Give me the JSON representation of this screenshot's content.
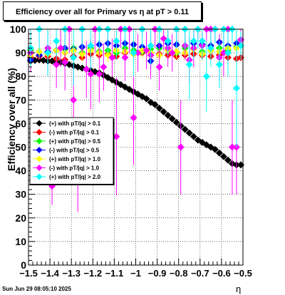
{
  "title": "Efficiency over all for Primary vs    η at pT > 0.11",
  "footer_date": "Sun Jun 29 08:05:10 2025",
  "chart_data": {
    "type": "scatter",
    "xlabel": "η",
    "ylabel": "Efficiency over all (%)",
    "xlim": [
      -1.5,
      -0.5
    ],
    "ylim": [
      0,
      100
    ],
    "x_ticks": [
      "−1.5",
      "−1.4",
      "−1.3",
      "−1.2",
      "−1.1",
      "−1",
      "−0.9",
      "−0.8",
      "−0.7",
      "−0.6",
      "−0.5"
    ],
    "y_ticks": [
      "0",
      "10",
      "20",
      "30",
      "40",
      "50",
      "60",
      "70",
      "80",
      "90",
      "100"
    ],
    "grid": true,
    "legend_position": "center-left",
    "series": [
      {
        "name": "(+) with pT/|q| > 0.1",
        "color": "#000000",
        "points": [
          [
            -1.49,
            86.5,
            0.8
          ],
          [
            -1.47,
            86.8,
            0.8
          ],
          [
            -1.45,
            87.0,
            0.8
          ],
          [
            -1.43,
            86.8,
            0.8
          ],
          [
            -1.41,
            86.5,
            0.8
          ],
          [
            -1.39,
            86.5,
            0.8
          ],
          [
            -1.37,
            86.0,
            0.8
          ],
          [
            -1.35,
            86.0,
            0.8
          ],
          [
            -1.33,
            85.5,
            0.8
          ],
          [
            -1.31,
            85.0,
            0.8
          ],
          [
            -1.29,
            84.5,
            0.8
          ],
          [
            -1.27,
            84.0,
            0.8
          ],
          [
            -1.25,
            83.5,
            0.8
          ],
          [
            -1.23,
            83.0,
            0.8
          ],
          [
            -1.21,
            82.5,
            0.8
          ],
          [
            -1.19,
            82.0,
            0.8
          ],
          [
            -1.17,
            81.5,
            0.8
          ],
          [
            -1.15,
            80.5,
            0.8
          ],
          [
            -1.13,
            79.5,
            0.8
          ],
          [
            -1.11,
            78.5,
            0.8
          ],
          [
            -1.09,
            77.5,
            0.8
          ],
          [
            -1.07,
            76.5,
            0.8
          ],
          [
            -1.05,
            75.5,
            0.8
          ],
          [
            -1.03,
            74.5,
            0.8
          ],
          [
            -1.01,
            73.5,
            0.8
          ],
          [
            -0.99,
            72.5,
            0.8
          ],
          [
            -0.97,
            71.5,
            0.8
          ],
          [
            -0.95,
            70.5,
            0.8
          ],
          [
            -0.93,
            69.0,
            0.8
          ],
          [
            -0.91,
            68.0,
            0.8
          ],
          [
            -0.89,
            66.5,
            0.8
          ],
          [
            -0.87,
            65.0,
            0.8
          ],
          [
            -0.85,
            63.5,
            0.8
          ],
          [
            -0.83,
            62.0,
            0.8
          ],
          [
            -0.81,
            60.5,
            0.8
          ],
          [
            -0.79,
            59.0,
            0.8
          ],
          [
            -0.77,
            57.5,
            0.8
          ],
          [
            -0.75,
            56.0,
            0.8
          ],
          [
            -0.73,
            54.5,
            0.8
          ],
          [
            -0.71,
            53.0,
            0.8
          ],
          [
            -0.69,
            52.0,
            0.8
          ],
          [
            -0.67,
            51.0,
            0.8
          ],
          [
            -0.65,
            50.0,
            0.8
          ],
          [
            -0.63,
            49.0,
            0.8
          ],
          [
            -0.61,
            47.5,
            0.8
          ],
          [
            -0.59,
            46.0,
            0.8
          ],
          [
            -0.57,
            44.5,
            0.8
          ],
          [
            -0.55,
            43.0,
            0.8
          ],
          [
            -0.53,
            42.5,
            0.8
          ],
          [
            -0.51,
            42.5,
            0.8
          ]
        ]
      },
      {
        "name": "(-) with pT/|q| > 0.1",
        "color": "#ff0000",
        "points": [
          [
            -1.49,
            88.0,
            1.5
          ],
          [
            -1.45,
            88.5,
            1.5
          ],
          [
            -1.41,
            88.5,
            1.5
          ],
          [
            -1.37,
            87.5,
            1.5
          ],
          [
            -1.33,
            87.0,
            1.5
          ],
          [
            -1.29,
            88.5,
            1.5
          ],
          [
            -1.25,
            88.0,
            1.5
          ],
          [
            -1.21,
            89.5,
            1.5
          ],
          [
            -1.17,
            89.0,
            1.5
          ],
          [
            -1.13,
            89.5,
            1.5
          ],
          [
            -1.09,
            88.5,
            1.5
          ],
          [
            -1.05,
            90.0,
            1.5
          ],
          [
            -1.01,
            89.5,
            1.5
          ],
          [
            -0.97,
            90.0,
            1.5
          ],
          [
            -0.93,
            89.0,
            1.5
          ],
          [
            -0.89,
            89.5,
            1.5
          ],
          [
            -0.85,
            89.0,
            1.5
          ],
          [
            -0.81,
            88.5,
            1.5
          ],
          [
            -0.77,
            89.0,
            1.5
          ],
          [
            -0.73,
            89.5,
            1.5
          ],
          [
            -0.69,
            89.0,
            1.5
          ],
          [
            -0.65,
            88.5,
            1.5
          ],
          [
            -0.61,
            89.0,
            1.5
          ],
          [
            -0.57,
            88.0,
            1.5
          ],
          [
            -0.53,
            87.5,
            1.5
          ],
          [
            -0.51,
            88.0,
            1.5
          ]
        ]
      },
      {
        "name": "(+) with pT/|q| > 0.5",
        "color": "#00ff00",
        "points": [
          [
            -1.49,
            91.0,
            1.5
          ],
          [
            -1.45,
            90.5,
            2.0
          ],
          [
            -1.41,
            90.0,
            2.0
          ],
          [
            -1.37,
            91.0,
            2.0
          ],
          [
            -1.33,
            91.5,
            2.0
          ],
          [
            -1.29,
            92.0,
            2.0
          ],
          [
            -1.25,
            90.0,
            2.0
          ],
          [
            -1.21,
            92.0,
            2.0
          ],
          [
            -1.17,
            90.5,
            2.0
          ],
          [
            -1.13,
            91.0,
            2.0
          ],
          [
            -1.09,
            90.0,
            2.0
          ],
          [
            -1.05,
            92.0,
            2.0
          ],
          [
            -1.01,
            91.0,
            2.0
          ],
          [
            -0.97,
            90.5,
            2.0
          ],
          [
            -0.93,
            91.5,
            2.0
          ],
          [
            -0.89,
            92.0,
            2.0
          ],
          [
            -0.85,
            91.0,
            2.0
          ],
          [
            -0.81,
            90.0,
            2.0
          ],
          [
            -0.77,
            92.0,
            2.0
          ],
          [
            -0.73,
            91.5,
            2.0
          ],
          [
            -0.69,
            90.5,
            2.0
          ],
          [
            -0.65,
            91.0,
            2.0
          ],
          [
            -0.61,
            92.0,
            2.0
          ],
          [
            -0.57,
            91.0,
            2.0
          ],
          [
            -0.53,
            92.5,
            2.0
          ]
        ]
      },
      {
        "name": "(-) with pT/|q| > 0.5",
        "color": "#0000ff",
        "points": [
          [
            -1.49,
            87.0,
            2.0
          ],
          [
            -1.45,
            89.0,
            2.0
          ],
          [
            -1.41,
            90.5,
            2.0
          ],
          [
            -1.37,
            91.0,
            2.0
          ],
          [
            -1.33,
            92.0,
            2.0
          ],
          [
            -1.29,
            91.5,
            2.0
          ],
          [
            -1.25,
            92.5,
            2.0
          ],
          [
            -1.21,
            93.0,
            2.0
          ],
          [
            -1.17,
            93.5,
            2.0
          ],
          [
            -1.13,
            94.0,
            2.0
          ],
          [
            -1.09,
            93.0,
            2.0
          ],
          [
            -1.05,
            94.0,
            2.0
          ],
          [
            -1.01,
            93.5,
            2.0
          ],
          [
            -0.97,
            92.5,
            2.0
          ],
          [
            -0.93,
            86.5,
            3.0
          ],
          [
            -0.89,
            93.0,
            2.0
          ],
          [
            -0.85,
            94.0,
            2.0
          ],
          [
            -0.81,
            93.5,
            2.0
          ],
          [
            -0.77,
            93.0,
            2.0
          ],
          [
            -0.73,
            94.0,
            2.0
          ],
          [
            -0.69,
            93.5,
            2.0
          ],
          [
            -0.65,
            93.0,
            2.0
          ],
          [
            -0.61,
            94.5,
            2.0
          ],
          [
            -0.57,
            93.0,
            2.0
          ],
          [
            -0.53,
            94.0,
            2.0
          ],
          [
            -0.51,
            95.5,
            2.0
          ]
        ]
      },
      {
        "name": "(+) with pT/|q| > 1.0",
        "color": "#ffff00",
        "points": [
          [
            -1.49,
            89.0,
            3.0
          ],
          [
            -1.45,
            90.5,
            3.0
          ],
          [
            -1.41,
            89.5,
            3.0
          ],
          [
            -1.37,
            91.0,
            3.0
          ],
          [
            -1.33,
            90.0,
            3.0
          ],
          [
            -1.29,
            91.0,
            3.0
          ],
          [
            -1.25,
            89.5,
            3.0
          ],
          [
            -1.21,
            91.0,
            3.0
          ],
          [
            -1.17,
            90.0,
            3.0
          ],
          [
            -1.13,
            89.0,
            3.0
          ],
          [
            -1.09,
            91.0,
            3.0
          ],
          [
            -1.05,
            90.5,
            3.0
          ],
          [
            -1.01,
            89.5,
            3.0
          ],
          [
            -0.97,
            91.0,
            3.0
          ],
          [
            -0.93,
            90.0,
            3.0
          ],
          [
            -0.89,
            89.0,
            3.0
          ],
          [
            -0.85,
            91.0,
            3.0
          ],
          [
            -0.81,
            90.5,
            3.0
          ],
          [
            -0.77,
            90.0,
            3.0
          ],
          [
            -0.73,
            91.5,
            3.0
          ],
          [
            -0.69,
            89.5,
            3.0
          ],
          [
            -0.65,
            91.0,
            3.0
          ],
          [
            -0.61,
            90.5,
            3.0
          ],
          [
            -0.57,
            92.0,
            3.0
          ],
          [
            -0.53,
            92.0,
            3.0
          ]
        ]
      },
      {
        "name": "(-) with pT/|q| > 1.0",
        "color": "#ff00ff",
        "points": [
          [
            -1.49,
            90.0,
            8.0
          ],
          [
            -1.45,
            100.0,
            10.0
          ],
          [
            -1.41,
            92.0,
            12.0
          ],
          [
            -1.39,
            33.5,
            8.0
          ],
          [
            -1.37,
            85.0,
            10.0
          ],
          [
            -1.35,
            92.0,
            8.0
          ],
          [
            -1.33,
            86.0,
            12.0
          ],
          [
            -1.31,
            100.0,
            10.0
          ],
          [
            -1.29,
            70.0,
            15.0
          ],
          [
            -1.27,
            42.5,
            20.0
          ],
          [
            -1.25,
            100.0,
            10.0
          ],
          [
            -1.23,
            83.0,
            12.0
          ],
          [
            -1.21,
            81.0,
            15.0
          ],
          [
            -1.19,
            100.0,
            10.0
          ],
          [
            -1.17,
            81.0,
            12.0
          ],
          [
            -1.15,
            84.0,
            10.0
          ],
          [
            -1.13,
            100.0,
            10.0
          ],
          [
            -1.11,
            88.0,
            8.0
          ],
          [
            -1.09,
            54.5,
            25.0
          ],
          [
            -1.07,
            100.0,
            8.0
          ],
          [
            -1.05,
            88.0,
            10.0
          ],
          [
            -1.03,
            100.0,
            10.0
          ],
          [
            -1.01,
            62.5,
            20.0
          ],
          [
            -0.99,
            90.0,
            8.0
          ],
          [
            -0.97,
            100.0,
            8.0
          ],
          [
            -0.95,
            91.0,
            8.0
          ],
          [
            -0.93,
            89.0,
            10.0
          ],
          [
            -0.91,
            100.0,
            8.0
          ],
          [
            -0.89,
            84.0,
            10.0
          ],
          [
            -0.87,
            96.0,
            5.0
          ],
          [
            -0.85,
            92.0,
            8.0
          ],
          [
            -0.83,
            90.0,
            8.0
          ],
          [
            -0.81,
            100.0,
            5.0
          ],
          [
            -0.79,
            50.0,
            20.0
          ],
          [
            -0.77,
            93.0,
            6.0
          ],
          [
            -0.75,
            87.0,
            10.0
          ],
          [
            -0.73,
            92.0,
            8.0
          ],
          [
            -0.71,
            100.0,
            5.0
          ],
          [
            -0.69,
            93.0,
            6.0
          ],
          [
            -0.67,
            100.0,
            5.0
          ],
          [
            -0.65,
            100.0,
            5.0
          ],
          [
            -0.63,
            100.0,
            5.0
          ],
          [
            -0.61,
            88.0,
            10.0
          ],
          [
            -0.59,
            90.0,
            10.0
          ],
          [
            -0.57,
            100.0,
            8.0
          ],
          [
            -0.55,
            50.0,
            20.0
          ],
          [
            -0.53,
            50.0,
            20.0
          ],
          [
            -0.51,
            95.5,
            5.0
          ]
        ]
      },
      {
        "name": "(+) with pT/|q| > 2.0",
        "color": "#00ffff",
        "points": [
          [
            -1.49,
            92.0,
            8.0
          ],
          [
            -1.45,
            100.0,
            10.0
          ],
          [
            -1.41,
            90.0,
            10.0
          ],
          [
            -1.37,
            95.0,
            8.0
          ],
          [
            -1.33,
            100.0,
            10.0
          ],
          [
            -1.29,
            88.0,
            12.0
          ],
          [
            -1.25,
            100.0,
            8.0
          ],
          [
            -1.21,
            93.0,
            10.0
          ],
          [
            -1.17,
            100.0,
            8.0
          ],
          [
            -1.13,
            100.0,
            10.0
          ],
          [
            -1.09,
            95.0,
            8.0
          ],
          [
            -1.05,
            100.0,
            8.0
          ],
          [
            -1.01,
            90.0,
            10.0
          ],
          [
            -0.97,
            100.0,
            8.0
          ],
          [
            -0.93,
            93.0,
            8.0
          ],
          [
            -0.89,
            100.0,
            6.0
          ],
          [
            -0.85,
            95.0,
            6.0
          ],
          [
            -0.81,
            100.0,
            8.0
          ],
          [
            -0.77,
            100.0,
            8.0
          ],
          [
            -0.75,
            85.0,
            15.0
          ],
          [
            -0.73,
            95.0,
            8.0
          ],
          [
            -0.71,
            100.0,
            8.0
          ],
          [
            -0.69,
            95.0,
            8.0
          ],
          [
            -0.67,
            80.0,
            15.0
          ],
          [
            -0.65,
            92.0,
            8.0
          ],
          [
            -0.63,
            100.0,
            6.0
          ],
          [
            -0.61,
            85.0,
            10.0
          ],
          [
            -0.59,
            100.0,
            8.0
          ],
          [
            -0.57,
            90.0,
            10.0
          ],
          [
            -0.55,
            100.0,
            6.0
          ],
          [
            -0.53,
            75.0,
            25.0
          ],
          [
            -0.51,
            93.0,
            6.0
          ]
        ]
      }
    ]
  }
}
